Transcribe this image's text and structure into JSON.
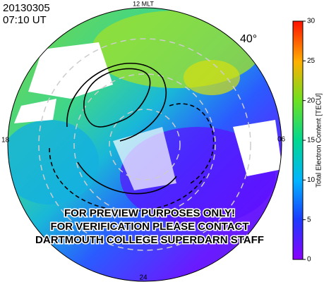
{
  "header": {
    "date": "20130305",
    "time": "07:10 UT"
  },
  "map": {
    "labels": {
      "top": "12 MLT",
      "left": "18",
      "right": "06",
      "bottom": "24"
    },
    "latitude_label": "40°"
  },
  "watermark": [
    "FOR PREVIEW PURPOSES ONLY!",
    "FOR VERIFICATION PLEASE CONTACT",
    "DARTMOUTH COLLEGE SUPERDARN STAFF"
  ],
  "colorbar": {
    "label": "Total Electron Content [TECU]",
    "lim": [
      0,
      30
    ],
    "ticks": [
      0,
      5,
      10,
      15,
      20,
      25,
      30
    ]
  }
}
